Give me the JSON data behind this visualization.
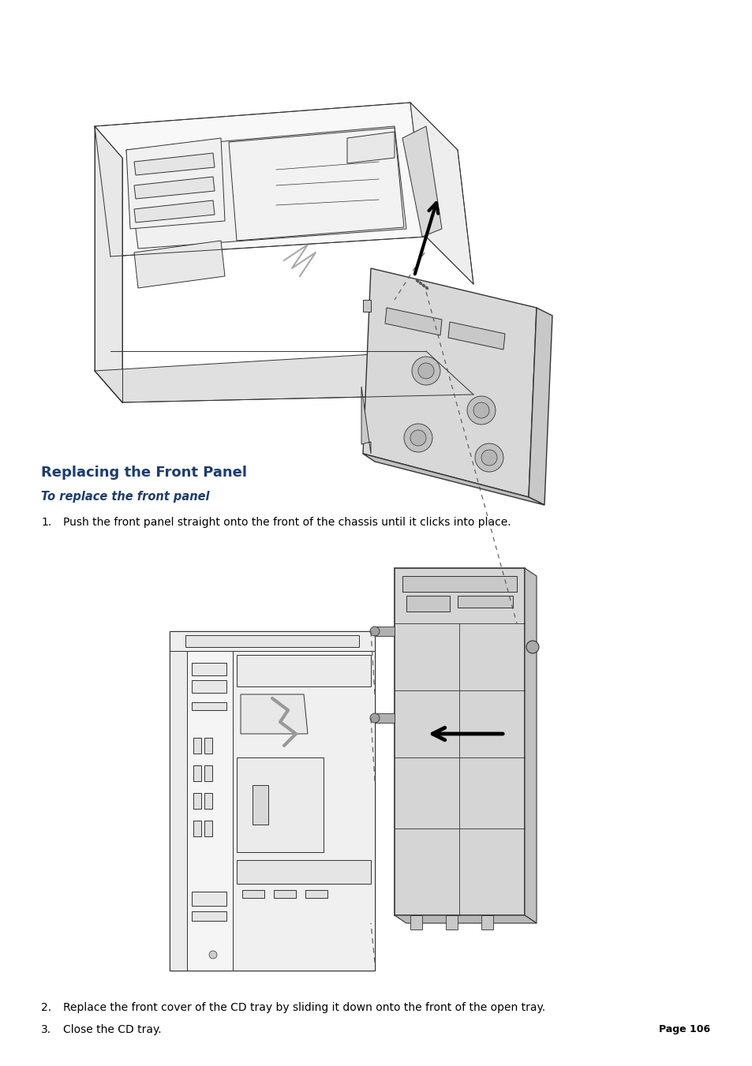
{
  "background_color": "#ffffff",
  "page_width": 9.54,
  "page_height": 13.51,
  "title": "Replacing the Front Panel",
  "title_color": "#1c3d6e",
  "title_fontsize": 13,
  "subtitle": "To replace the front panel",
  "subtitle_color": "#1c3d6e",
  "subtitle_fontsize": 10.5,
  "step1_text": "Push the front panel straight onto the front of the chassis until it clicks into place.",
  "step2_text": "Replace the front cover of the CD tray by sliding it down onto the front of the open tray.",
  "step3_text": "Close the CD tray.",
  "step_fontsize": 10,
  "step_color": "#000000",
  "page_label": "Page 106",
  "page_label_fontsize": 9,
  "lc": "#333333",
  "lw": 0.7
}
